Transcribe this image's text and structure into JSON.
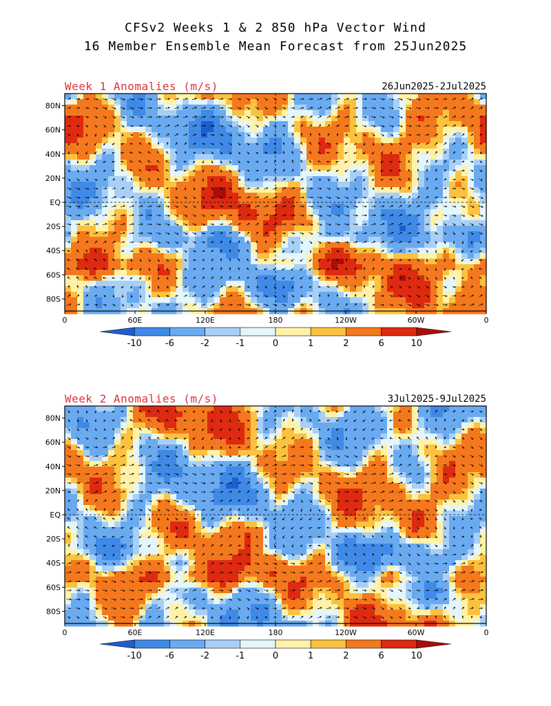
{
  "title_line1": "CFSv2 Weeks 1 & 2 850 hPa Vector Wind",
  "title_line2": "16 Member Ensemble Mean Forecast from 25Jun2025",
  "panels": [
    {
      "label": "Week 1 Anomalies (m/s)",
      "dates": "26Jun2025-2Jul2025",
      "seed": 7
    },
    {
      "label": "Week 2 Anomalies (m/s)",
      "dates": "3Jul2025-9Jul2025",
      "seed": 23
    }
  ],
  "chart_data": {
    "type": "heatmap",
    "variable": "850 hPa Vector Wind",
    "units": "m/s",
    "x_ticks": [
      "0",
      "60E",
      "120E",
      "180",
      "120W",
      "60W",
      "0"
    ],
    "y_ticks": [
      "80N",
      "60N",
      "40N",
      "20N",
      "EQ",
      "20S",
      "40S",
      "60S",
      "80S"
    ],
    "xlim": [
      0,
      360
    ],
    "ylim": [
      -90,
      90
    ],
    "colorbar": {
      "ticks": [
        "-10",
        "-6",
        "-2",
        "-1",
        "0",
        "1",
        "2",
        "6",
        "10"
      ],
      "colors": [
        "#1c5fd0",
        "#3f8ae6",
        "#6aaaf0",
        "#a8d0f7",
        "#e4f6fb",
        "#fff2a8",
        "#fbc240",
        "#f4781e",
        "#dd2a10",
        "#a80e0a"
      ]
    }
  }
}
